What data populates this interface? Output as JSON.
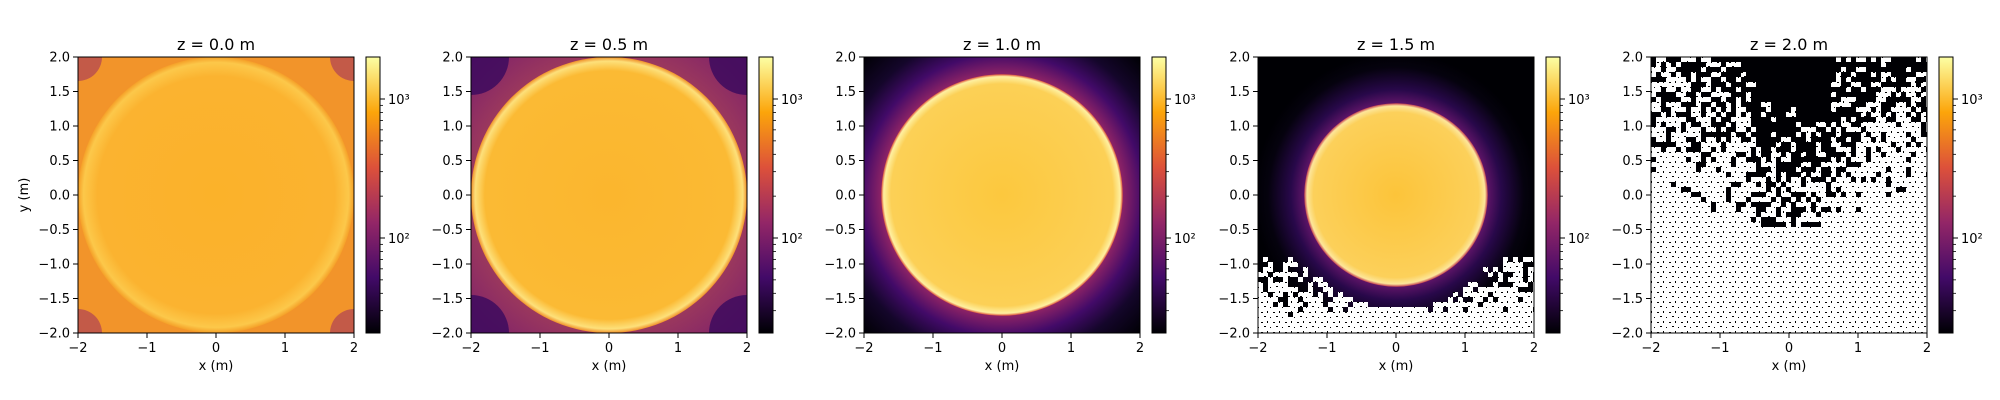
{
  "chart_data": [
    {
      "type": "heatmap",
      "title": "z = 0.0 m",
      "xlabel": "x (m)",
      "ylabel": "y (m)",
      "xlim": [
        -2,
        2
      ],
      "ylim": [
        -2,
        2
      ],
      "xticks": [
        "−2",
        "−1",
        "0",
        "1",
        "2"
      ],
      "yticks": [
        "2.0",
        "1.5",
        "1.0",
        "0.5",
        "0.0",
        "−0.5",
        "−1.0",
        "−1.5",
        "−2.0"
      ],
      "disk_radius_m": 2.0,
      "colorbar": {
        "scale": "log",
        "ticks": [
          "10³",
          "10²"
        ]
      }
    },
    {
      "type": "heatmap",
      "title": "z = 0.5 m",
      "xlabel": "x (m)",
      "ylabel": "",
      "xlim": [
        -2,
        2
      ],
      "ylim": [
        -2,
        2
      ],
      "xticks": [
        "−2",
        "−1",
        "0",
        "1",
        "2"
      ],
      "yticks": [
        "2.0",
        "1.5",
        "1.0",
        "0.5",
        "0.0",
        "−0.5",
        "−1.0",
        "−1.5",
        "−2.0"
      ],
      "disk_radius_m": 2.0,
      "colorbar": {
        "scale": "log",
        "ticks": [
          "10³",
          "10²"
        ]
      }
    },
    {
      "type": "heatmap",
      "title": "z = 1.0 m",
      "xlabel": "x (m)",
      "ylabel": "",
      "xlim": [
        -2,
        2
      ],
      "ylim": [
        -2,
        2
      ],
      "xticks": [
        "−2",
        "−1",
        "0",
        "1",
        "2"
      ],
      "yticks": [
        "2.0",
        "1.5",
        "1.0",
        "0.5",
        "0.0",
        "−0.5",
        "−1.0",
        "−1.5",
        "−2.0"
      ],
      "disk_radius_m": 1.75,
      "colorbar": {
        "scale": "log",
        "ticks": [
          "10³",
          "10²"
        ]
      }
    },
    {
      "type": "heatmap",
      "title": "z = 1.5 m",
      "xlabel": "x (m)",
      "ylabel": "",
      "xlim": [
        -2,
        2
      ],
      "ylim": [
        -2,
        2
      ],
      "xticks": [
        "−2",
        "−1",
        "0",
        "1",
        "2"
      ],
      "yticks": [
        "2.0",
        "1.5",
        "1.0",
        "0.5",
        "0.0",
        "−0.5",
        "−1.0",
        "−1.5",
        "−2.0"
      ],
      "disk_radius_m": 1.33,
      "colorbar": {
        "scale": "log",
        "ticks": [
          "10³",
          "10²"
        ]
      }
    },
    {
      "type": "heatmap",
      "title": "z = 2.0 m",
      "xlabel": "x (m)",
      "ylabel": "",
      "xlim": [
        -2,
        2
      ],
      "ylim": [
        -2,
        2
      ],
      "xticks": [
        "−2",
        "−1",
        "0",
        "1",
        "2"
      ],
      "yticks": [
        "2.0",
        "1.5",
        "1.0",
        "0.5",
        "0.0",
        "−0.5",
        "−1.0",
        "−1.5",
        "−2.0"
      ],
      "disk_radius_m": 0,
      "colorbar": {
        "scale": "log",
        "ticks": [
          "10³",
          "10²"
        ]
      }
    }
  ],
  "colors": {
    "colormap": "inferno",
    "stops": [
      "#000004",
      "#420a68",
      "#932667",
      "#dd513a",
      "#fca50a",
      "#fcffa4"
    ]
  }
}
